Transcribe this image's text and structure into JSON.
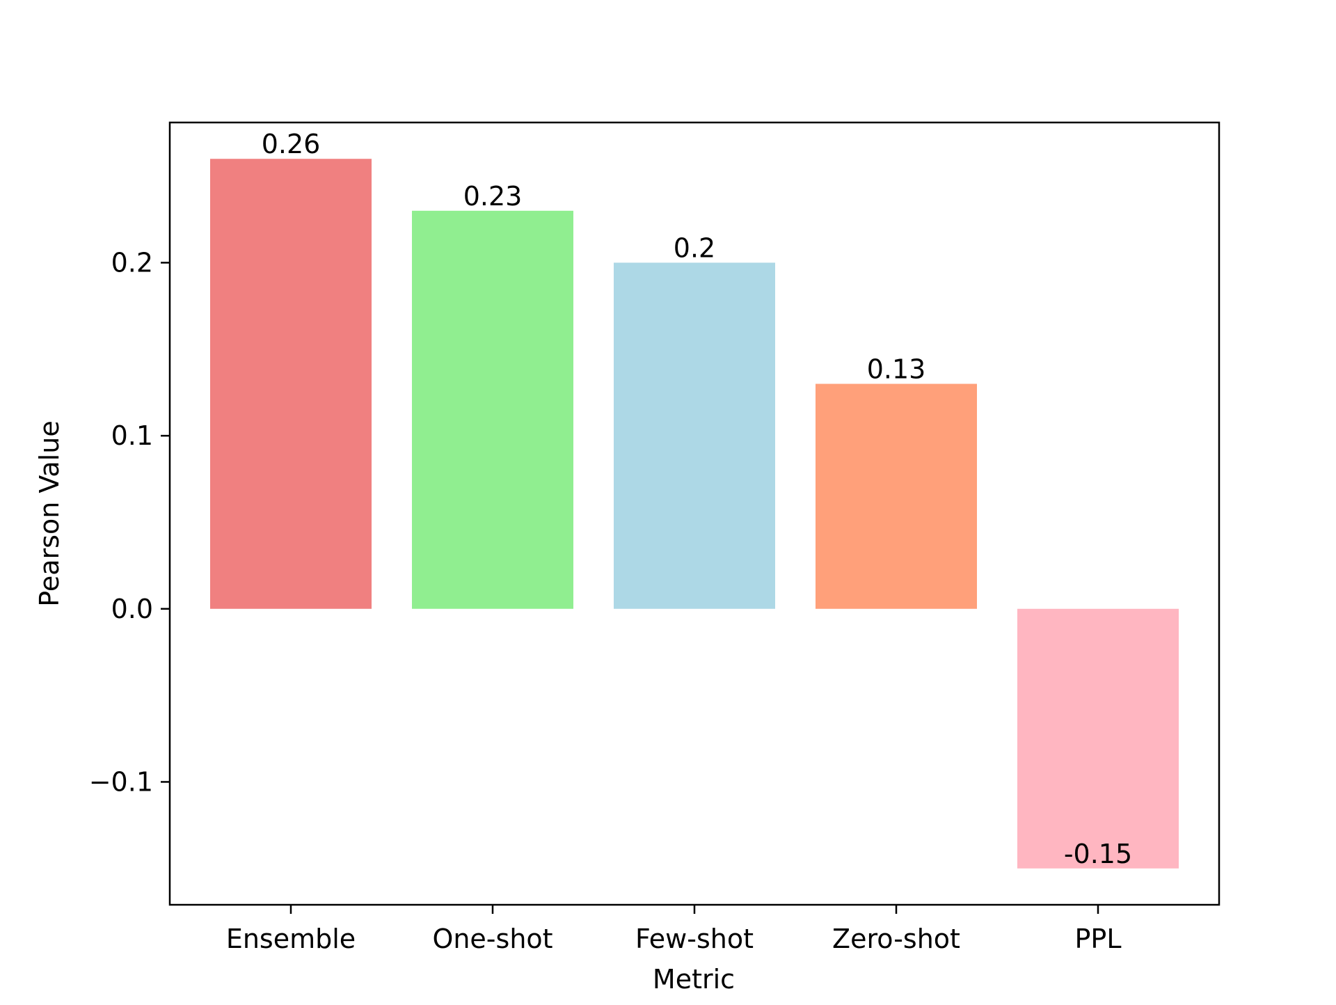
{
  "chart_data": {
    "type": "bar",
    "title": "",
    "xlabel": "Metric",
    "ylabel": "Pearson Value",
    "categories": [
      "Ensemble",
      "One-shot",
      "Few-shot",
      "Zero-shot",
      "PPL"
    ],
    "values": [
      0.26,
      0.23,
      0.2,
      0.13,
      -0.15
    ],
    "value_labels": [
      "0.26",
      "0.23",
      "0.2",
      "0.13",
      "-0.15"
    ],
    "colors": [
      "#F08080",
      "#90EE90",
      "#ADD8E6",
      "#FFA07A",
      "#FFB6C1"
    ],
    "ylim": [
      -0.171,
      0.281
    ],
    "yticks": [
      -0.1,
      0.0,
      0.1,
      0.2
    ],
    "ytick_labels": [
      "−0.1",
      "0.0",
      "0.1",
      "0.2"
    ],
    "grid": false,
    "legend": "none"
  }
}
